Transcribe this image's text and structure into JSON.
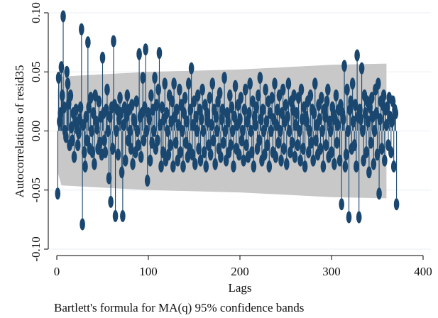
{
  "chart_data": {
    "type": "autocorrelation (stem) plot",
    "ylabel": "Autocorrelations of resid35",
    "xlabel": "Lags",
    "note": "Bartlett's formula for MA(q) 95% confidence bands",
    "xlim": [
      0,
      400
    ],
    "ylim": [
      -0.1,
      0.1
    ],
    "x_ticks": [
      0,
      100,
      200,
      300,
      400
    ],
    "y_ticks": [
      -0.1,
      -0.05,
      0.0,
      0.05,
      0.1
    ],
    "x_tick_labels": [
      "0",
      "100",
      "200",
      "300",
      "400"
    ],
    "y_tick_labels": [
      "-0.10",
      "-0.05",
      "0.00",
      "0.05",
      "0.10"
    ],
    "grid": "horizontal",
    "confidence_band": {
      "lags": [
        1,
        5,
        50,
        100,
        150,
        200,
        250,
        300,
        360
      ],
      "upper": [
        0.035,
        0.046,
        0.048,
        0.05,
        0.051,
        0.052,
        0.054,
        0.056,
        0.057
      ],
      "lower": [
        -0.035,
        -0.046,
        -0.048,
        -0.05,
        -0.051,
        -0.052,
        -0.054,
        -0.056,
        -0.057
      ]
    },
    "highlighted_values": [
      {
        "lag": 1,
        "value": -0.053
      },
      {
        "lag": 2,
        "value": 0.045
      },
      {
        "lag": 5,
        "value": 0.054
      },
      {
        "lag": 7,
        "value": 0.097
      },
      {
        "lag": 27,
        "value": 0.086
      },
      {
        "lag": 28,
        "value": -0.079
      },
      {
        "lag": 34,
        "value": 0.075
      },
      {
        "lag": 50,
        "value": 0.062
      },
      {
        "lag": 59,
        "value": -0.06
      },
      {
        "lag": 62,
        "value": 0.076
      },
      {
        "lag": 64,
        "value": -0.072
      },
      {
        "lag": 72,
        "value": -0.072
      },
      {
        "lag": 90,
        "value": 0.065
      },
      {
        "lag": 97,
        "value": 0.069
      },
      {
        "lag": 112,
        "value": 0.066
      },
      {
        "lag": 147,
        "value": 0.053
      },
      {
        "lag": 297,
        "value": -0.062
      },
      {
        "lag": 301,
        "value": 0.055
      },
      {
        "lag": 306,
        "value": -0.073
      },
      {
        "lag": 315,
        "value": 0.064
      },
      {
        "lag": 317,
        "value": -0.073
      },
      {
        "lag": 320,
        "value": 0.053
      },
      {
        "lag": 341,
        "value": -0.053
      },
      {
        "lag": 359,
        "value": -0.062
      }
    ],
    "series": [
      {
        "x_start": 1,
        "values": [
          -0.053,
          0.045,
          0.008,
          0.015,
          0.054,
          0.03,
          0.097,
          0.02,
          0.0,
          -0.005,
          0.05,
          0.04,
          0.023,
          -0.012,
          0.03,
          0.003,
          -0.008,
          0.015,
          -0.022,
          0.008,
          0.018,
          0.002,
          -0.012,
          -0.002,
          0.01,
          0.02,
          0.086,
          -0.079,
          0.005,
          -0.018,
          -0.03,
          0.012,
          -0.008,
          0.075,
          0.02,
          -0.015,
          0.028,
          0.0,
          -0.018,
          0.015,
          -0.028,
          0.03,
          0.008,
          0.002,
          -0.015,
          0.025,
          -0.01,
          0.012,
          -0.02,
          0.062,
          0.015,
          -0.008,
          -0.018,
          0.018,
          0.035,
          0.0,
          -0.04,
          0.012,
          -0.06,
          0.02,
          -0.015,
          0.076,
          0.022,
          -0.072,
          0.0,
          0.018,
          -0.02,
          0.01,
          0.028,
          0.015,
          -0.035,
          -0.072,
          0.005,
          0.02,
          -0.025,
          0.012,
          0.03,
          -0.008,
          0.018,
          0.0,
          -0.015,
          0.022,
          -0.028,
          0.01,
          0.008,
          -0.018,
          0.025,
          0.0,
          -0.012,
          0.065,
          0.012,
          -0.022,
          0.015,
          0.045,
          -0.008,
          0.02,
          0.069,
          0.0,
          -0.042,
          0.015,
          0.01,
          -0.025,
          0.03,
          -0.01,
          0.018,
          0.0,
          0.045,
          -0.015,
          0.022,
          -0.008,
          0.035,
          0.066,
          0.005,
          -0.03,
          0.02,
          -0.018,
          0.01,
          0.04,
          -0.025,
          0.015,
          0.0,
          -0.02,
          0.03,
          -0.012,
          0.008,
          0.025,
          -0.03,
          0.04,
          0.012,
          -0.01,
          0.018,
          -0.025,
          0.005,
          0.035,
          -0.018,
          0.022,
          0.0,
          -0.03,
          0.015,
          0.028,
          -0.01,
          0.008,
          -0.022,
          0.04,
          -0.015,
          0.018,
          0.053,
          -0.02,
          0.005,
          0.025,
          -0.028,
          0.012,
          0.0,
          0.03,
          -0.015,
          0.018,
          -0.025,
          0.01,
          0.035,
          0.0,
          -0.018,
          0.022,
          -0.03,
          0.015,
          0.008,
          -0.012,
          0.028,
          -0.02,
          0.005,
          0.04,
          -0.008,
          0.018,
          -0.028,
          0.012,
          0.0,
          0.025,
          -0.015,
          0.032,
          -0.022,
          0.01,
          0.018,
          -0.01,
          0.045,
          0.0,
          -0.025,
          0.015,
          0.008,
          -0.018,
          0.03,
          -0.012,
          0.02,
          0.0,
          -0.03,
          0.012,
          0.038,
          -0.015,
          0.005,
          0.022,
          -0.02,
          0.01,
          0.028,
          -0.008,
          0.0,
          -0.025,
          0.018,
          0.035,
          -0.012,
          0.008,
          -0.022,
          0.015,
          0.04,
          0.0,
          -0.018,
          0.025,
          -0.03,
          0.012,
          0.005,
          0.02,
          -0.015,
          0.03,
          -0.008,
          0.045,
          0.01,
          -0.025,
          0.018,
          0.0,
          -0.02,
          0.035,
          0.008,
          -0.012,
          0.025,
          -0.03,
          0.015,
          0.0,
          0.028,
          -0.018,
          0.01,
          0.04,
          -0.022,
          0.005,
          0.018,
          -0.01,
          0.03,
          0.0,
          -0.025,
          0.015,
          0.035,
          -0.015,
          0.008,
          0.022,
          -0.028,
          0.012,
          0.04,
          0.0,
          -0.018,
          0.025,
          -0.01,
          0.018,
          0.03,
          -0.022,
          0.005,
          0.015,
          -0.012,
          0.028,
          0.0,
          -0.025,
          0.035,
          0.01,
          -0.015,
          0.02,
          -0.03,
          0.012,
          0.008,
          0.025,
          -0.018,
          0.0,
          0.03,
          -0.01,
          0.018,
          -0.025,
          0.015,
          0.04,
          -0.008,
          0.005,
          -0.02,
          0.022,
          0.01,
          -0.015,
          0.028,
          0.0,
          -0.03,
          0.018,
          0.012,
          -0.012,
          0.025,
          0.035,
          -0.022,
          0.008,
          0.0,
          -0.018,
          0.02,
          0.015,
          -0.028,
          0.01,
          0.03,
          -0.01,
          0.005,
          0.018,
          -0.025,
          0.022,
          -0.062,
          0.015,
          0.01,
          0.055,
          -0.03,
          -0.02,
          0.035,
          0.0,
          -0.073,
          0.018,
          0.025,
          -0.015,
          0.04,
          0.008,
          -0.012,
          0.022,
          -0.03,
          0.064,
          0.012,
          -0.073,
          0.018,
          0.01,
          0.053,
          0.0,
          -0.025,
          0.03,
          0.015,
          -0.018,
          0.025,
          0.008,
          -0.035,
          0.02,
          -0.01,
          0.028,
          0.012,
          -0.028,
          0.0,
          0.035,
          0.015,
          -0.02,
          0.04,
          -0.053,
          0.01,
          0.025,
          -0.015,
          0.022,
          0.03,
          -0.025,
          0.018,
          0.005,
          0.02,
          -0.012,
          0.028,
          0.012,
          -0.018,
          0.008,
          0.025,
          -0.03,
          0.018,
          0.015,
          -0.062
        ]
      }
    ],
    "colors": {
      "marker": "#1a476f",
      "stem": "#1a476f",
      "band": "#c8c8c8",
      "grid": "#e8eef2",
      "axis": "#000000"
    }
  }
}
